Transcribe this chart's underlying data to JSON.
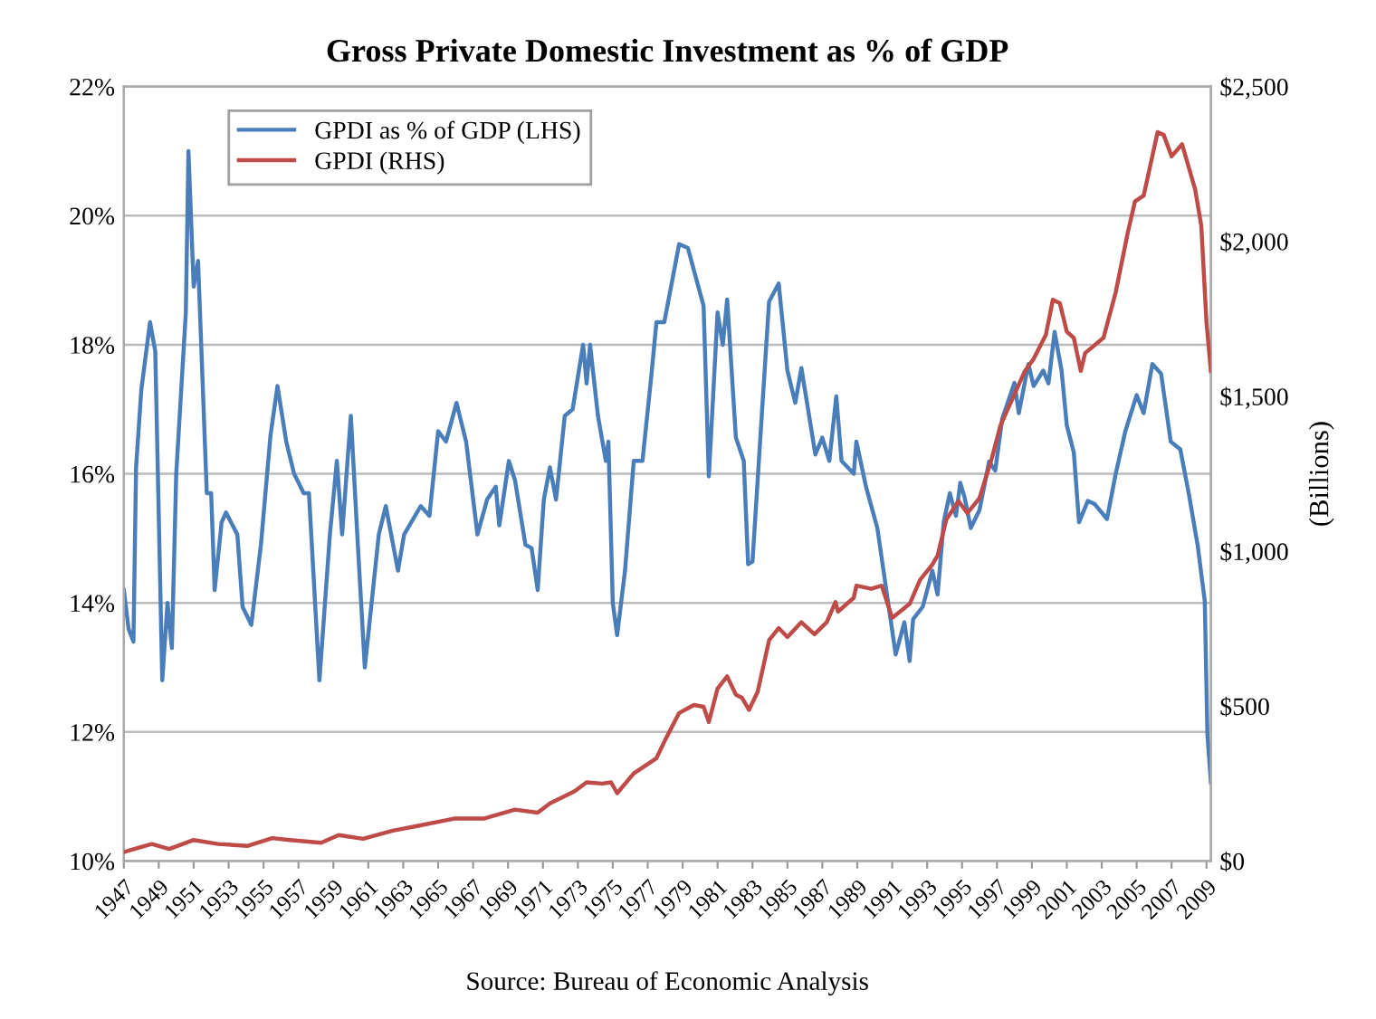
{
  "chart_data": {
    "type": "line",
    "title": "Gross Private Domestic Investment as % of GDP",
    "y2label": "(Billions)",
    "annotations": [
      "Source: Bureau of Economic Analysis"
    ],
    "legend": "top left",
    "grid": "y",
    "line_style": "solid",
    "marker": "none",
    "xlim": [
      1947,
      2009.25
    ],
    "xticks": [
      1947,
      1949,
      1951,
      1953,
      1955,
      1957,
      1959,
      1961,
      1963,
      1965,
      1967,
      1969,
      1971,
      1973,
      1975,
      1977,
      1979,
      1981,
      1983,
      1985,
      1987,
      1989,
      1991,
      1993,
      1995,
      1997,
      1999,
      2001,
      2003,
      2005,
      2007,
      2009
    ],
    "ylim": [
      10,
      22
    ],
    "yticks": [
      {
        "value": 10,
        "label": "10%"
      },
      {
        "value": 12,
        "label": "12%"
      },
      {
        "value": 14,
        "label": "14%"
      },
      {
        "value": 16,
        "label": "16%"
      },
      {
        "value": 18,
        "label": "18%"
      },
      {
        "value": 20,
        "label": "20%"
      },
      {
        "value": 22,
        "label": "22%"
      }
    ],
    "y2lim": [
      0,
      2500
    ],
    "y2ticks": [
      {
        "value": 0,
        "label": "$0"
      },
      {
        "value": 500,
        "label": "$500"
      },
      {
        "value": 1000,
        "label": "$1,000"
      },
      {
        "value": 1500,
        "label": "$1,500"
      },
      {
        "value": 2000,
        "label": "$2,000"
      },
      {
        "value": 2500,
        "label": "$2,500"
      }
    ],
    "series": [
      {
        "name": "GPDI as % of GDP (LHS)",
        "color": "#4a7ebb",
        "axis": "y",
        "x": [
          1947.0,
          1947.27,
          1947.55,
          1947.7,
          1948.0,
          1948.5,
          1948.8,
          1949.2,
          1949.5,
          1949.75,
          1950.0,
          1950.55,
          1950.7,
          1951.0,
          1951.25,
          1951.75,
          1952.0,
          1952.2,
          1952.6,
          1952.85,
          1953.5,
          1953.8,
          1954.3,
          1954.85,
          1955.4,
          1955.8,
          1956.3,
          1956.75,
          1957.3,
          1957.6,
          1958.2,
          1958.8,
          1959.2,
          1959.5,
          1960.0,
          1960.4,
          1960.8,
          1961.6,
          1962.0,
          1962.7,
          1963.05,
          1964.0,
          1964.5,
          1965.0,
          1965.45,
          1966.05,
          1966.6,
          1967.25,
          1967.8,
          1968.3,
          1968.5,
          1969.05,
          1969.4,
          1970.0,
          1970.35,
          1970.7,
          1971.05,
          1971.4,
          1971.75,
          1972.25,
          1972.7,
          1973.3,
          1973.5,
          1973.7,
          1974.15,
          1974.6,
          1974.75,
          1975.0,
          1975.25,
          1975.7,
          1976.2,
          1976.7,
          1977.2,
          1977.5,
          1977.95,
          1978.8,
          1979.3,
          1980.2,
          1980.5,
          1981.0,
          1981.3,
          1981.55,
          1982.05,
          1982.5,
          1982.75,
          1983.0,
          1983.45,
          1983.95,
          1984.5,
          1985.0,
          1985.45,
          1985.8,
          1986.6,
          1987.0,
          1987.4,
          1987.8,
          1988.1,
          1988.8,
          1988.95,
          1989.5,
          1990.15,
          1990.7,
          1991.2,
          1991.7,
          1992.0,
          1992.2,
          1992.75,
          1993.3,
          1993.6,
          1993.95,
          1994.3,
          1994.65,
          1994.9,
          1995.15,
          1995.5,
          1996.0,
          1996.55,
          1996.9,
          1997.3,
          1998.0,
          1998.25,
          1998.8,
          1999.1,
          1999.65,
          1999.95,
          2000.3,
          2000.7,
          2001.0,
          2001.4,
          2001.7,
          2002.2,
          2002.6,
          2003.3,
          2003.8,
          2004.35,
          2005.0,
          2005.4,
          2005.9,
          2006.4,
          2006.95,
          2007.5,
          2008.0,
          2008.5,
          2008.9,
          2009.05,
          2009.25
        ],
        "values": [
          14.2,
          13.6,
          13.4,
          16.1,
          17.3,
          18.35,
          17.9,
          12.8,
          14.0,
          13.3,
          16.0,
          18.5,
          21.0,
          18.9,
          19.3,
          15.7,
          15.7,
          14.2,
          15.25,
          15.4,
          15.06,
          13.94,
          13.66,
          14.9,
          16.6,
          17.36,
          16.5,
          16.0,
          15.7,
          15.7,
          12.8,
          15.06,
          16.2,
          15.06,
          16.9,
          14.9,
          13.0,
          15.06,
          15.5,
          14.5,
          15.06,
          15.5,
          15.35,
          16.66,
          16.5,
          17.1,
          16.5,
          15.06,
          15.6,
          15.8,
          15.2,
          16.2,
          15.9,
          14.9,
          14.85,
          14.2,
          15.6,
          16.1,
          15.6,
          16.9,
          17.0,
          18.0,
          17.4,
          18.0,
          16.9,
          16.2,
          16.5,
          14.0,
          13.5,
          14.5,
          16.2,
          16.2,
          17.5,
          18.35,
          18.35,
          19.56,
          19.5,
          18.6,
          15.96,
          18.5,
          18.0,
          18.7,
          16.56,
          16.2,
          14.6,
          14.64,
          16.56,
          18.67,
          18.95,
          17.6,
          17.1,
          17.64,
          16.3,
          16.56,
          16.2,
          17.2,
          16.2,
          16.0,
          16.5,
          15.8,
          15.16,
          14.13,
          13.2,
          13.7,
          13.1,
          13.75,
          13.94,
          14.5,
          14.13,
          15.25,
          15.7,
          15.35,
          15.86,
          15.63,
          15.16,
          15.44,
          16.19,
          16.05,
          16.85,
          17.41,
          16.94,
          17.7,
          17.36,
          17.6,
          17.4,
          18.2,
          17.6,
          16.75,
          16.33,
          15.25,
          15.58,
          15.53,
          15.3,
          16.0,
          16.66,
          17.22,
          16.94,
          17.7,
          17.55,
          16.5,
          16.38,
          15.67,
          14.88,
          14.03,
          11.97,
          11.22
        ]
      },
      {
        "name": "GPDI (RHS)",
        "color": "#be4b48",
        "axis": "y2",
        "x": [
          1947.0,
          1947.6,
          1948.6,
          1949.6,
          1951.0,
          1952.4,
          1954.1,
          1955.5,
          1956.5,
          1958.3,
          1959.3,
          1960.7,
          1962.4,
          1963.8,
          1965.9,
          1967.6,
          1969.4,
          1970.7,
          1971.4,
          1972.8,
          1973.5,
          1974.4,
          1974.9,
          1975.25,
          1976.2,
          1977.5,
          1978.0,
          1978.8,
          1979.65,
          1980.2,
          1980.5,
          1981.0,
          1981.55,
          1982.05,
          1982.4,
          1982.8,
          1983.3,
          1983.95,
          1984.5,
          1985.0,
          1985.8,
          1986.55,
          1987.25,
          1987.75,
          1987.9,
          1988.8,
          1988.95,
          1989.8,
          1990.4,
          1991.0,
          1991.55,
          1992.0,
          1992.6,
          1993.3,
          1993.6,
          1994.1,
          1994.8,
          1995.3,
          1996.0,
          1996.7,
          1997.2,
          1997.9,
          1998.6,
          1999.1,
          1999.8,
          2000.2,
          2000.6,
          2001.0,
          2001.4,
          2001.8,
          2002.05,
          2003.1,
          2003.8,
          2004.5,
          2004.9,
          2005.4,
          2006.2,
          2006.55,
          2007.0,
          2007.6,
          2008.35,
          2008.7,
          2009.0,
          2009.25
        ],
        "values": [
          29,
          39,
          55,
          39,
          68,
          55,
          49,
          74,
          68,
          59,
          84,
          72,
          98,
          113,
          137,
          137,
          166,
          156,
          186,
          225,
          254,
          250,
          254,
          219,
          283,
          332,
          391,
          478,
          504,
          498,
          449,
          557,
          596,
          537,
          527,
          488,
          547,
          713,
          752,
          723,
          771,
          732,
          771,
          836,
          805,
          850,
          889,
          879,
          889,
          785,
          810,
          830,
          908,
          957,
          986,
          1103,
          1162,
          1123,
          1172,
          1299,
          1406,
          1494,
          1582,
          1621,
          1699,
          1812,
          1801,
          1709,
          1689,
          1582,
          1640,
          1689,
          1836,
          2031,
          2129,
          2148,
          2353,
          2344,
          2275,
          2314,
          2168,
          2051,
          1738,
          1582
        ]
      }
    ]
  }
}
